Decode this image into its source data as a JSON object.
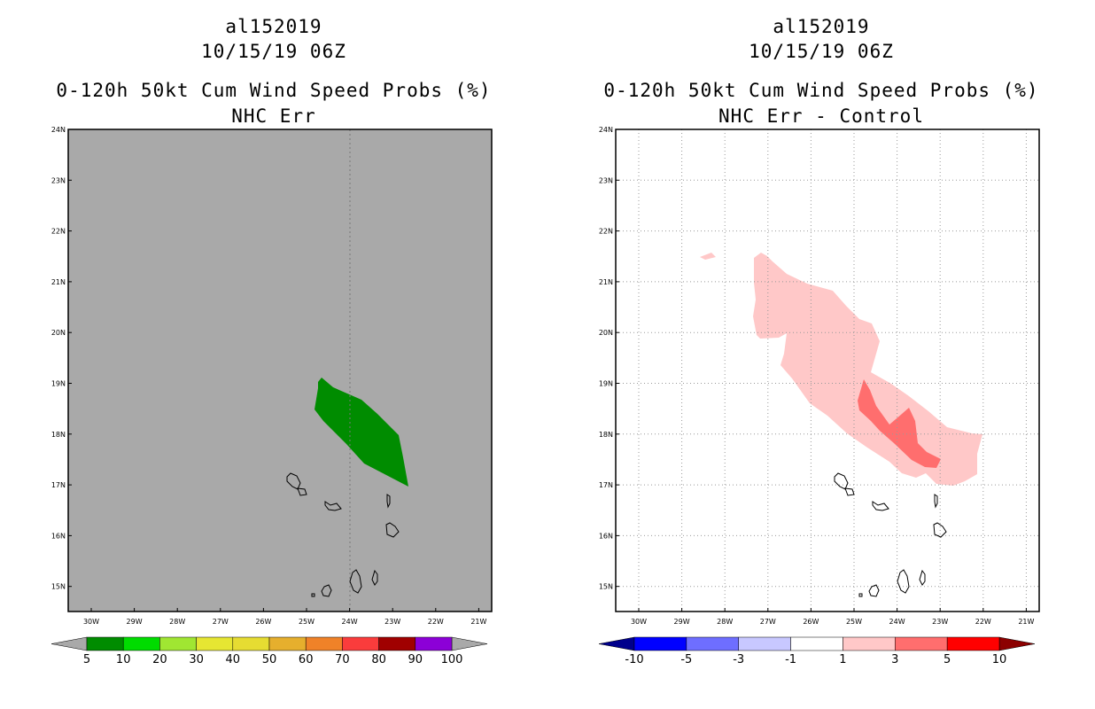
{
  "left": {
    "storm_id": "al152019",
    "datetime": "10/15/19 06Z",
    "product": "0-120h 50kt Cum Wind Speed Probs (%)",
    "subtitle": "NHC Err",
    "background_color": "#a9a9a9",
    "contour_color": "#008c00",
    "colorbar": {
      "labels": [
        "5",
        "10",
        "20",
        "30",
        "40",
        "50",
        "60",
        "70",
        "80",
        "90",
        "100"
      ],
      "colors": [
        "#008c00",
        "#00dc00",
        "#a0e632",
        "#e6e632",
        "#e6dc32",
        "#e6af2d",
        "#f08228",
        "#fa3c3c",
        "#a00000",
        "#8c00d7"
      ],
      "end_low_color": "#a9a9a9",
      "end_high_color": "#a9a9a9"
    }
  },
  "right": {
    "storm_id": "al152019",
    "datetime": "10/15/19 06Z",
    "product": "0-120h 50kt Cum Wind Speed Probs (%)",
    "subtitle": "NHC Err - Control",
    "background_color": "#ffffff",
    "contour_colors": {
      "light": "#ffc8c8",
      "medium": "#ff6e6e"
    },
    "colorbar": {
      "labels": [
        "-10",
        "-5",
        "-3",
        "-1",
        "1",
        "3",
        "5",
        "10"
      ],
      "colors": [
        "#0000ff",
        "#6e6eff",
        "#c8c8ff",
        "#ffffff",
        "#ffc8c8",
        "#ff6e6e",
        "#ff0000"
      ],
      "end_low_color": "#00008c",
      "end_high_color": "#8c0000"
    }
  },
  "axes": {
    "lat_labels": [
      "24N",
      "23N",
      "22N",
      "21N",
      "20N",
      "19N",
      "18N",
      "17N",
      "16N",
      "15N"
    ],
    "lon_labels": [
      "30W",
      "29W",
      "28W",
      "27W",
      "26W",
      "25W",
      "24W",
      "23W",
      "22W",
      "21W"
    ]
  }
}
